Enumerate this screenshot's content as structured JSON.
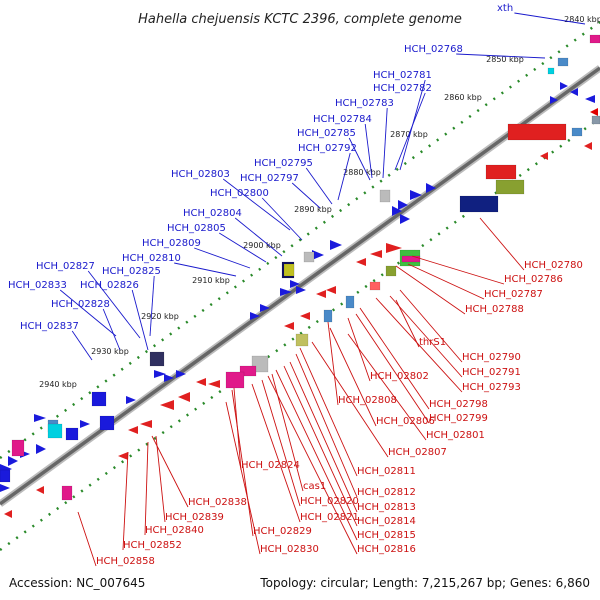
{
  "title": "Hahella chejuensis KCTC 2396, complete genome",
  "footer": {
    "accession": "Accession: NC_007645",
    "summary": "Topology: circular; Length: 7,215,267 bp; Genes: 6,860"
  },
  "colors": {
    "top_strand_label": "#1a1acc",
    "bottom_strand_label": "#cc1111",
    "backbone": "#777777",
    "tick_outer": "#2a8a2a",
    "tick_inner": "#2a8a2a"
  },
  "kbp_ticks": [
    "2840 kbp",
    "2850 kbp",
    "2860 kbp",
    "2870 kbp",
    "2880 kbp",
    "2890 kbp",
    "2900 kbp",
    "2910 kbp",
    "2920 kbp",
    "2930 kbp",
    "2940 kbp"
  ],
  "top_labels": [
    "xth",
    "HCH_02768",
    "HCH_02781",
    "HCH_02782",
    "HCH_02783",
    "HCH_02784",
    "HCH_02785",
    "HCH_02792",
    "HCH_02795",
    "HCH_02797",
    "HCH_02803",
    "HCH_02800",
    "HCH_02804",
    "HCH_02805",
    "HCH_02809",
    "HCH_02810",
    "HCH_02827",
    "HCH_02825",
    "HCH_02833",
    "HCH_02826",
    "HCH_02828",
    "HCH_02837"
  ],
  "bottom_labels": [
    "HCH_02780",
    "HCH_02786",
    "HCH_02787",
    "HCH_02788",
    "thrS1",
    "HCH_02790",
    "HCH_02791",
    "HCH_02793",
    "HCH_02802",
    "HCH_02798",
    "HCH_02799",
    "HCH_02808",
    "HCH_02806",
    "HCH_02801",
    "HCH_02807",
    "HCH_02824",
    "HCH_02811",
    "cas1",
    "HCH_02812",
    "HCH_02838",
    "HCH_02820",
    "HCH_02813",
    "HCH_02839",
    "HCH_02821",
    "HCH_02814",
    "HCH_02840",
    "HCH_02829",
    "HCH_02815",
    "HCH_02852",
    "HCH_02830",
    "HCH_02816",
    "HCH_02858"
  ]
}
